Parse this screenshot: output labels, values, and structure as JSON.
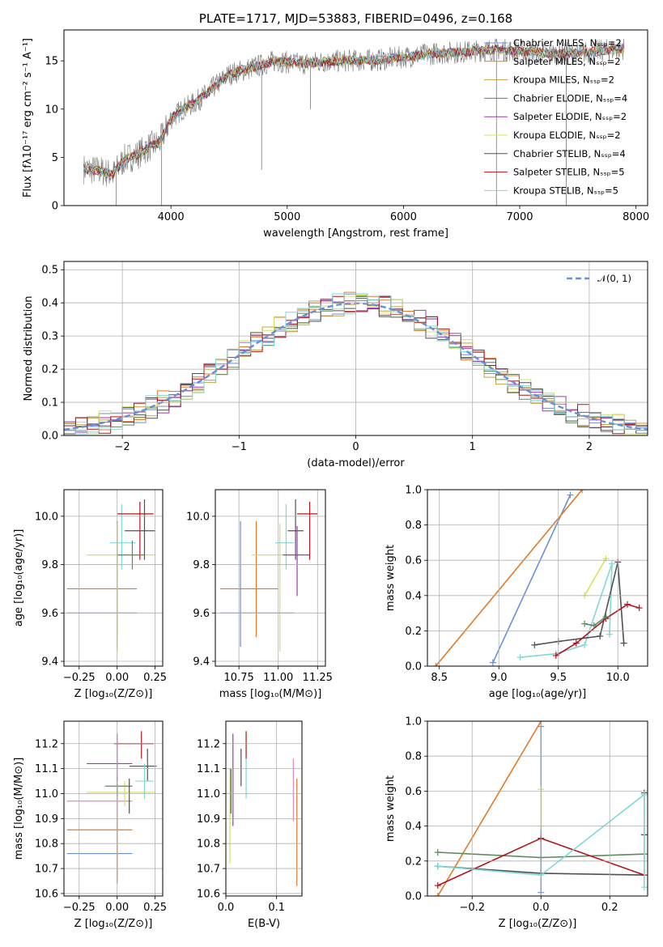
{
  "colors": [
    "#6a8fd8",
    "#e07a2a",
    "#c8a040",
    "#5c8a5c",
    "#9e3ab0",
    "#d8e060",
    "#505050",
    "#b0141e",
    "#80d8d8",
    "#e088c0"
  ],
  "chart_data": [
    {
      "id": "spectrum",
      "type": "line",
      "title": "PLATE=1717, MJD=53883, FIBERID=0496, z=0.168",
      "xlabel": "wavelength [Angstrom, rest frame]",
      "ylabel": "Flux [fλ10⁻¹⁷ erg cm⁻² s⁻¹ A⁻¹]",
      "xlim": [
        3080,
        8100
      ],
      "ylim": [
        0,
        18.2
      ],
      "xticks": [
        "4000",
        "5000",
        "6000",
        "7000",
        "8000"
      ],
      "yticks": [
        "0",
        "5",
        "10",
        "15"
      ],
      "grid": false,
      "legend": "top-right",
      "continuum": [
        [
          3250,
          3.8
        ],
        [
          3400,
          3.6
        ],
        [
          3500,
          3.2
        ],
        [
          3600,
          4.8
        ],
        [
          3700,
          5.2
        ],
        [
          3800,
          6.0
        ],
        [
          3900,
          6.5
        ],
        [
          4000,
          9.0
        ],
        [
          4100,
          10.0
        ],
        [
          4200,
          10.6
        ],
        [
          4300,
          11.5
        ],
        [
          4400,
          12.6
        ],
        [
          4500,
          13.6
        ],
        [
          4700,
          14.3
        ],
        [
          4900,
          15.0
        ],
        [
          5100,
          14.7
        ],
        [
          5300,
          14.9
        ],
        [
          5500,
          15.0
        ],
        [
          5800,
          15.1
        ],
        [
          6000,
          15.4
        ],
        [
          6300,
          15.8
        ],
        [
          6500,
          15.9
        ],
        [
          6800,
          16.2
        ],
        [
          7000,
          16.0
        ],
        [
          7300,
          15.7
        ],
        [
          7600,
          15.9
        ],
        [
          7900,
          16.3
        ]
      ],
      "series": [
        {
          "name": "Chabrier MILES, Nₛₛₚ=2"
        },
        {
          "name": "Salpeter MILES, Nₛₛₚ=2"
        },
        {
          "name": "Kroupa MILES, Nₛₛₚ=2"
        },
        {
          "name": "Chabrier ELODIE, Nₛₛₚ=4"
        },
        {
          "name": "Salpeter ELODIE, Nₛₛₚ=2"
        },
        {
          "name": "Kroupa ELODIE, Nₛₛₚ=2"
        },
        {
          "name": "Chabrier STELIB, Nₛₛₚ=4"
        },
        {
          "name": "Salpeter STELIB, Nₛₛₚ=5"
        },
        {
          "name": "Kroupa STELIB, Nₛₛₚ=5"
        }
      ]
    },
    {
      "id": "residuals",
      "type": "histogram",
      "xlabel": "(data-model)/error",
      "ylabel": "Normed distribution",
      "xlim": [
        -2.5,
        2.5
      ],
      "ylim": [
        0,
        0.525
      ],
      "xticks": [
        "−2",
        "−1",
        "0",
        "1",
        "2"
      ],
      "yticks": [
        "0.0",
        "0.1",
        "0.2",
        "0.3",
        "0.4",
        "0.5"
      ],
      "grid": true,
      "legend_label": "𝒩(0, 1)",
      "legend": "top-right",
      "bin_width": 0.1
    },
    {
      "id": "age-vs-Z",
      "type": "errorbar",
      "xlabel": "Z [log₁₀(Z/Z⊙)]",
      "ylabel": "age  [log₁₀(age/yr)]",
      "xlim": [
        -0.35,
        0.3
      ],
      "ylim": [
        9.38,
        10.11
      ],
      "xticks": [
        "−0.25",
        "0.00",
        "0.25"
      ],
      "yticks": [
        "9.4",
        "9.6",
        "9.8",
        "10.0"
      ],
      "points": [
        {
          "c": 0,
          "x": 0.0,
          "xlo": -0.33,
          "xhi": 0.13,
          "y": 9.6,
          "ylo": 9.46,
          "yhi": 9.98
        },
        {
          "c": 1,
          "x": 0.0,
          "xlo": -0.33,
          "xhi": 0.13,
          "y": 9.7,
          "ylo": 9.5,
          "yhi": 9.98
        },
        {
          "c": 5,
          "x": 0.0,
          "xlo": -0.2,
          "xhi": 0.25,
          "y": 9.84,
          "ylo": 9.44,
          "yhi": 9.97
        },
        {
          "c": 8,
          "x": 0.03,
          "xlo": -0.05,
          "xhi": 0.12,
          "y": 9.89,
          "ylo": 9.78,
          "yhi": 10.05
        },
        {
          "c": 7,
          "x": 0.15,
          "xlo": 0.0,
          "xhi": 0.24,
          "y": 10.01,
          "ylo": 9.82,
          "yhi": 10.06
        },
        {
          "c": 6,
          "x": 0.18,
          "xlo": 0.05,
          "xhi": 0.25,
          "y": 9.94,
          "ylo": 9.82,
          "yhi": 10.07
        },
        {
          "c": 3,
          "x": 0.1,
          "xlo": 0.0,
          "xhi": 0.18,
          "y": 9.84,
          "ylo": 9.78,
          "yhi": 9.9
        }
      ]
    },
    {
      "id": "age-vs-mass",
      "type": "errorbar",
      "xlabel": "mass [log₁₀(M/M⊙)]",
      "ylabel": "",
      "xlim": [
        10.6,
        11.3
      ],
      "ylim": [
        9.38,
        10.11
      ],
      "xticks": [
        "10.75",
        "11.00",
        "11.25"
      ],
      "yticks": [
        "9.4",
        "9.6",
        "9.8",
        "10.0"
      ],
      "points": [
        {
          "c": 0,
          "x": 10.76,
          "xlo": 10.63,
          "xhi": 11.1,
          "y": 9.6,
          "ylo": 9.46,
          "yhi": 9.98
        },
        {
          "c": 1,
          "x": 10.86,
          "xlo": 10.63,
          "xhi": 11.0,
          "y": 9.7,
          "ylo": 9.5,
          "yhi": 9.98
        },
        {
          "c": 5,
          "x": 11.01,
          "xlo": 10.83,
          "xhi": 11.1,
          "y": 9.84,
          "ylo": 9.44,
          "yhi": 9.97
        },
        {
          "c": 8,
          "x": 11.05,
          "xlo": 10.98,
          "xhi": 11.1,
          "y": 9.89,
          "ylo": 9.78,
          "yhi": 10.05
        },
        {
          "c": 7,
          "x": 11.2,
          "xlo": 11.12,
          "xhi": 11.25,
          "y": 10.01,
          "ylo": 9.82,
          "yhi": 10.06
        },
        {
          "c": 6,
          "x": 11.11,
          "xlo": 11.06,
          "xhi": 11.16,
          "y": 9.94,
          "ylo": 9.82,
          "yhi": 10.07
        },
        {
          "c": 4,
          "x": 11.12,
          "xlo": 11.03,
          "xhi": 11.2,
          "y": 9.84,
          "ylo": 9.67,
          "yhi": 9.96
        }
      ]
    },
    {
      "id": "massweight-vs-age",
      "type": "line",
      "xlabel": "age  [log₁₀(age/yr)]",
      "ylabel": "mass weight",
      "xlim": [
        8.4,
        10.25
      ],
      "ylim": [
        0,
        1.0
      ],
      "xticks": [
        "8.5",
        "9.0",
        "9.5",
        "10.0"
      ],
      "yticks": [
        "0.0",
        "0.2",
        "0.4",
        "0.6",
        "0.8",
        "1.0"
      ],
      "grid": true,
      "series": [
        {
          "c": 0,
          "points": [
            [
              8.95,
              0.02
            ],
            [
              9.6,
              0.97
            ]
          ]
        },
        {
          "c": 1,
          "points": [
            [
              8.47,
              0.0
            ],
            [
              9.7,
              1.0
            ]
          ]
        },
        {
          "c": 5,
          "points": [
            [
              9.72,
              0.4
            ],
            [
              9.9,
              0.61
            ]
          ]
        },
        {
          "c": 8,
          "points": [
            [
              9.18,
              0.05
            ],
            [
              9.48,
              0.07
            ],
            [
              9.72,
              0.12
            ],
            [
              9.95,
              0.58
            ],
            [
              9.93,
              0.18
            ]
          ]
        },
        {
          "c": 6,
          "points": [
            [
              9.3,
              0.12
            ],
            [
              9.5,
              0.14
            ],
            [
              9.85,
              0.17
            ],
            [
              10.0,
              0.59
            ],
            [
              10.05,
              0.13
            ]
          ]
        },
        {
          "c": 7,
          "points": [
            [
              9.48,
              0.06
            ],
            [
              9.65,
              0.13
            ],
            [
              9.9,
              0.27
            ],
            [
              10.08,
              0.35
            ],
            [
              10.18,
              0.33
            ]
          ]
        },
        {
          "c": 3,
          "points": [
            [
              9.72,
              0.24
            ],
            [
              9.8,
              0.23
            ],
            [
              9.9,
              0.28
            ]
          ]
        }
      ]
    },
    {
      "id": "mass-vs-Z",
      "type": "errorbar",
      "xlabel": "Z [log₁₀(Z/Z⊙)]",
      "ylabel": "mass [log₁₀(M/M⊙)]",
      "xlim": [
        -0.35,
        0.3
      ],
      "ylim": [
        10.59,
        11.29
      ],
      "xticks": [
        "−0.25",
        "0.00",
        "0.25"
      ],
      "yticks": [
        "10.6",
        "10.7",
        "10.8",
        "10.9",
        "11.0",
        "11.1",
        "11.2"
      ],
      "points": [
        {
          "c": 0,
          "x": 0.0,
          "xlo": -0.33,
          "xhi": 0.1,
          "y": 10.76,
          "ylo": 10.64,
          "yhi": 11.04
        },
        {
          "c": 1,
          "x": 0.0,
          "xlo": -0.33,
          "xhi": 0.1,
          "y": 10.855,
          "ylo": 10.65,
          "yhi": 11.01
        },
        {
          "c": 9,
          "x": 0.0,
          "xlo": -0.33,
          "xhi": 0.1,
          "y": 10.97,
          "ylo": 10.9,
          "yhi": 11.0
        },
        {
          "c": 5,
          "x": 0.05,
          "xlo": -0.2,
          "xhi": 0.25,
          "y": 11.005,
          "ylo": 10.95,
          "yhi": 11.05
        },
        {
          "c": 3,
          "x": 0.0,
          "xlo": -0.08,
          "xhi": 0.1,
          "y": 11.03,
          "ylo": 10.99,
          "yhi": 11.07
        },
        {
          "c": 6,
          "x": 0.2,
          "xlo": 0.08,
          "xhi": 0.26,
          "y": 11.11,
          "ylo": 11.05,
          "yhi": 11.18
        },
        {
          "c": 4,
          "x": 0.0,
          "xlo": -0.2,
          "xhi": 0.1,
          "y": 11.12,
          "ylo": 11.05,
          "yhi": 11.24
        },
        {
          "c": 7,
          "x": 0.16,
          "xlo": -0.02,
          "xhi": 0.24,
          "y": 11.2,
          "ylo": 11.14,
          "yhi": 11.25
        },
        {
          "c": 8,
          "x": 0.18,
          "xlo": 0.12,
          "xhi": 0.24,
          "y": 11.05,
          "ylo": 10.98,
          "yhi": 11.12
        },
        {
          "c": 6,
          "x": 0.08,
          "xlo": 0.08,
          "xhi": 0.08,
          "y": 11.0,
          "ylo": 10.92,
          "yhi": 11.06
        }
      ]
    },
    {
      "id": "mass-vs-EBV",
      "type": "errorbar",
      "xlabel": "E(B-V)",
      "ylabel": "",
      "xlim": [
        0.0,
        0.15
      ],
      "ylim": [
        10.59,
        11.29
      ],
      "xticks": [
        "0.0",
        "0.1"
      ],
      "yticks": [
        "10.6",
        "10.7",
        "10.8",
        "10.9",
        "11.0",
        "11.1",
        "11.2"
      ],
      "points": [
        {
          "c": 5,
          "x": 0.008,
          "xlo": 0.008,
          "xhi": 0.008,
          "y": 10.9,
          "ylo": 10.72,
          "yhi": 11.1
        },
        {
          "c": 6,
          "x": 0.01,
          "xlo": 0.01,
          "xhi": 0.01,
          "y": 11.0,
          "ylo": 10.92,
          "yhi": 11.1
        },
        {
          "c": 4,
          "x": 0.014,
          "xlo": 0.014,
          "xhi": 0.014,
          "y": 11.05,
          "ylo": 10.87,
          "yhi": 11.24
        },
        {
          "c": 6,
          "x": 0.03,
          "xlo": 0.03,
          "xhi": 0.03,
          "y": 11.1,
          "ylo": 11.03,
          "yhi": 11.18
        },
        {
          "c": 8,
          "x": 0.04,
          "xlo": 0.04,
          "xhi": 0.04,
          "y": 11.05,
          "ylo": 10.98,
          "yhi": 11.14
        },
        {
          "c": 7,
          "x": 0.04,
          "xlo": 0.04,
          "xhi": 0.04,
          "y": 11.2,
          "ylo": 11.14,
          "yhi": 11.25
        },
        {
          "c": 9,
          "x": 0.133,
          "xlo": 0.133,
          "xhi": 0.133,
          "y": 11.0,
          "ylo": 10.89,
          "yhi": 11.14
        },
        {
          "c": 1,
          "x": 0.14,
          "xlo": 0.14,
          "xhi": 0.14,
          "y": 10.85,
          "ylo": 10.63,
          "yhi": 11.06
        }
      ]
    },
    {
      "id": "massweight-vs-Z",
      "type": "line",
      "xlabel": "Z [log₁₀(Z/Z⊙)]",
      "ylabel": "mass weight",
      "xlim": [
        -0.33,
        0.31
      ],
      "ylim": [
        0,
        1.0
      ],
      "xticks": [
        "−0.2",
        "0.0",
        "0.2"
      ],
      "yticks": [
        "0.0",
        "0.2",
        "0.4",
        "0.6",
        "0.8",
        "1.0"
      ],
      "grid": true,
      "series": [
        {
          "c": 0,
          "points": [
            [
              0.0,
              0.02
            ],
            [
              0.0,
              0.97
            ]
          ]
        },
        {
          "c": 1,
          "points": [
            [
              -0.3,
              0.0
            ],
            [
              0.0,
              1.0
            ]
          ]
        },
        {
          "c": 5,
          "points": [
            [
              0.0,
              0.4
            ],
            [
              0.0,
              0.61
            ]
          ]
        },
        {
          "c": 3,
          "points": [
            [
              -0.3,
              0.25
            ],
            [
              0.0,
              0.22
            ],
            [
              0.3,
              0.24
            ]
          ]
        },
        {
          "c": 6,
          "points": [
            [
              -0.3,
              0.17
            ],
            [
              0.0,
              0.13
            ],
            [
              0.3,
              0.12
            ],
            [
              0.3,
              0.59
            ],
            [
              0.3,
              0.35
            ]
          ]
        },
        {
          "c": 7,
          "points": [
            [
              -0.3,
              0.06
            ],
            [
              0.0,
              0.33
            ],
            [
              0.3,
              0.12
            ]
          ]
        },
        {
          "c": 8,
          "points": [
            [
              -0.3,
              0.17
            ],
            [
              0.0,
              0.12
            ],
            [
              0.3,
              0.58
            ],
            [
              0.3,
              0.05
            ]
          ]
        }
      ]
    }
  ]
}
